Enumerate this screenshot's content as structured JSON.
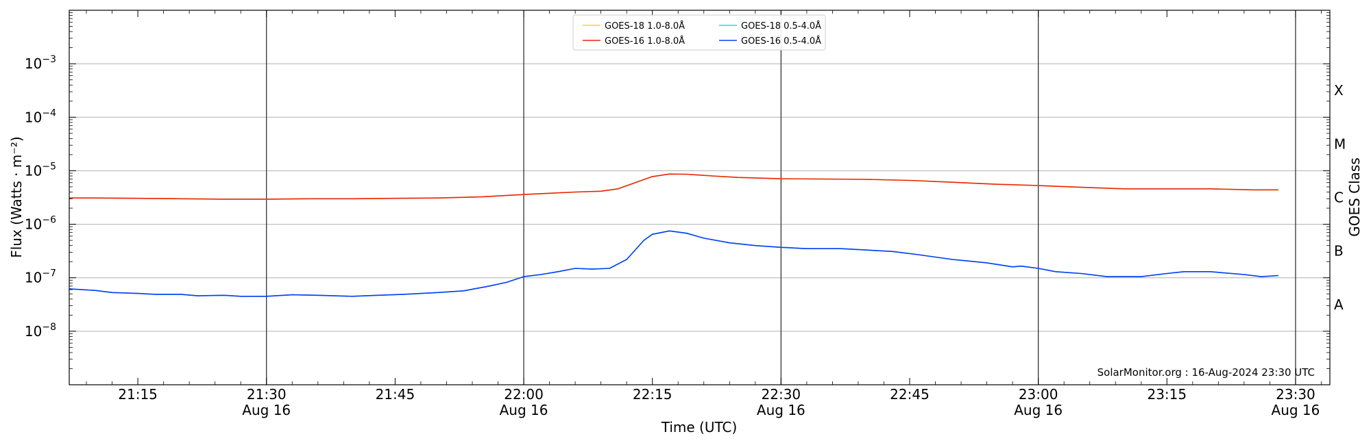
{
  "chart_data": {
    "type": "line",
    "xlabel": "Time (UTC)",
    "ylabel": "Flux (Watts · m⁻²)",
    "ylabel_right": "GOES Class",
    "annotation": "SolarMonitor.org : 16-Aug-2024 23:30 UTC",
    "y_scale": "log",
    "ylim": [
      1e-09,
      0.01
    ],
    "xlim": [
      "21:07",
      "23:34"
    ],
    "grid": "horizontal at decades, vertical at half-hours",
    "legend_placement": "top-center",
    "x_ticks": [
      {
        "t": "21:15",
        "label": "21:15",
        "sub": ""
      },
      {
        "t": "21:30",
        "label": "21:30",
        "sub": "Aug 16"
      },
      {
        "t": "21:45",
        "label": "21:45",
        "sub": ""
      },
      {
        "t": "22:00",
        "label": "22:00",
        "sub": "Aug 16"
      },
      {
        "t": "22:15",
        "label": "22:15",
        "sub": ""
      },
      {
        "t": "22:30",
        "label": "22:30",
        "sub": "Aug 16"
      },
      {
        "t": "22:45",
        "label": "22:45",
        "sub": ""
      },
      {
        "t": "23:00",
        "label": "23:00",
        "sub": "Aug 16"
      },
      {
        "t": "23:15",
        "label": "23:15",
        "sub": ""
      },
      {
        "t": "23:30",
        "label": "23:30",
        "sub": "Aug 16"
      }
    ],
    "y_ticks": [
      {
        "exp": -8,
        "label": "10",
        "sup": "−8"
      },
      {
        "exp": -7,
        "label": "10",
        "sup": "−7"
      },
      {
        "exp": -6,
        "label": "10",
        "sup": "−6"
      },
      {
        "exp": -5,
        "label": "10",
        "sup": "−5"
      },
      {
        "exp": -4,
        "label": "10",
        "sup": "−4"
      },
      {
        "exp": -3,
        "label": "10",
        "sup": "−3"
      }
    ],
    "goes_classes": [
      {
        "label": "A",
        "exp": -7.5
      },
      {
        "label": "B",
        "exp": -6.5
      },
      {
        "label": "C",
        "exp": -5.5
      },
      {
        "label": "M",
        "exp": -4.5
      },
      {
        "label": "X",
        "exp": -3.5
      }
    ],
    "series": [
      {
        "name": "GOES-18 1.0-8.0Å",
        "color": "#ffd700",
        "points": [
          [
            "21:07",
            3.1e-06
          ],
          [
            "21:10",
            3.1e-06
          ],
          [
            "21:15",
            3.05e-06
          ],
          [
            "21:20",
            3e-06
          ],
          [
            "21:25",
            2.95e-06
          ],
          [
            "21:30",
            2.95e-06
          ],
          [
            "21:35",
            3e-06
          ],
          [
            "21:40",
            3e-06
          ],
          [
            "21:45",
            3.05e-06
          ],
          [
            "21:50",
            3.1e-06
          ],
          [
            "21:55",
            3.25e-06
          ],
          [
            "22:00",
            3.6e-06
          ],
          [
            "22:03",
            3.8e-06
          ],
          [
            "22:06",
            4e-06
          ],
          [
            "22:09",
            4.15e-06
          ],
          [
            "22:11",
            4.6e-06
          ],
          [
            "22:13",
            6e-06
          ],
          [
            "22:15",
            7.8e-06
          ],
          [
            "22:17",
            8.7e-06
          ],
          [
            "22:19",
            8.6e-06
          ],
          [
            "22:22",
            8e-06
          ],
          [
            "22:25",
            7.5e-06
          ],
          [
            "22:30",
            7.1e-06
          ],
          [
            "22:35",
            7e-06
          ],
          [
            "22:40",
            6.9e-06
          ],
          [
            "22:45",
            6.6e-06
          ],
          [
            "22:50",
            6.1e-06
          ],
          [
            "22:55",
            5.6e-06
          ],
          [
            "23:00",
            5.3e-06
          ],
          [
            "23:05",
            4.9e-06
          ],
          [
            "23:10",
            4.6e-06
          ],
          [
            "23:15",
            4.6e-06
          ],
          [
            "23:20",
            4.6e-06
          ],
          [
            "23:25",
            4.4e-06
          ],
          [
            "23:28",
            4.4e-06
          ]
        ]
      },
      {
        "name": "GOES-16 1.0-8.0Å",
        "color": "#e8250f",
        "points": [
          [
            "21:07",
            3.1e-06
          ],
          [
            "21:10",
            3.1e-06
          ],
          [
            "21:15",
            3.05e-06
          ],
          [
            "21:20",
            3e-06
          ],
          [
            "21:25",
            2.95e-06
          ],
          [
            "21:30",
            2.95e-06
          ],
          [
            "21:35",
            3e-06
          ],
          [
            "21:40",
            3e-06
          ],
          [
            "21:45",
            3.05e-06
          ],
          [
            "21:50",
            3.1e-06
          ],
          [
            "21:55",
            3.25e-06
          ],
          [
            "22:00",
            3.6e-06
          ],
          [
            "22:03",
            3.8e-06
          ],
          [
            "22:06",
            4e-06
          ],
          [
            "22:09",
            4.15e-06
          ],
          [
            "22:11",
            4.6e-06
          ],
          [
            "22:13",
            6e-06
          ],
          [
            "22:15",
            7.8e-06
          ],
          [
            "22:17",
            8.7e-06
          ],
          [
            "22:19",
            8.6e-06
          ],
          [
            "22:22",
            8e-06
          ],
          [
            "22:25",
            7.5e-06
          ],
          [
            "22:30",
            7.1e-06
          ],
          [
            "22:35",
            7e-06
          ],
          [
            "22:40",
            6.9e-06
          ],
          [
            "22:45",
            6.6e-06
          ],
          [
            "22:50",
            6.1e-06
          ],
          [
            "22:55",
            5.6e-06
          ],
          [
            "23:00",
            5.3e-06
          ],
          [
            "23:05",
            4.9e-06
          ],
          [
            "23:10",
            4.6e-06
          ],
          [
            "23:15",
            4.6e-06
          ],
          [
            "23:20",
            4.6e-06
          ],
          [
            "23:25",
            4.4e-06
          ],
          [
            "23:28",
            4.4e-06
          ]
        ]
      },
      {
        "name": "GOES-18 0.5-4.0Å",
        "color": "#22d8f0",
        "points": [
          [
            "21:07",
            6.2e-08
          ],
          [
            "21:10",
            5.8e-08
          ],
          [
            "21:12",
            5.3e-08
          ],
          [
            "21:15",
            5.1e-08
          ],
          [
            "21:17",
            4.9e-08
          ],
          [
            "21:20",
            4.9e-08
          ],
          [
            "21:22",
            4.6e-08
          ],
          [
            "21:25",
            4.7e-08
          ],
          [
            "21:27",
            4.5e-08
          ],
          [
            "21:30",
            4.5e-08
          ],
          [
            "21:33",
            4.8e-08
          ],
          [
            "21:36",
            4.7e-08
          ],
          [
            "21:40",
            4.5e-08
          ],
          [
            "21:43",
            4.7e-08
          ],
          [
            "21:46",
            4.9e-08
          ],
          [
            "21:50",
            5.3e-08
          ],
          [
            "21:53",
            5.7e-08
          ],
          [
            "21:56",
            7e-08
          ],
          [
            "21:58",
            8.2e-08
          ],
          [
            "22:00",
            1.05e-07
          ],
          [
            "22:02",
            1.15e-07
          ],
          [
            "22:04",
            1.3e-07
          ],
          [
            "22:06",
            1.5e-07
          ],
          [
            "22:08",
            1.45e-07
          ],
          [
            "22:10",
            1.5e-07
          ],
          [
            "22:12",
            2.2e-07
          ],
          [
            "22:14",
            5e-07
          ],
          [
            "22:15",
            6.5e-07
          ],
          [
            "22:17",
            7.5e-07
          ],
          [
            "22:19",
            6.8e-07
          ],
          [
            "22:21",
            5.5e-07
          ],
          [
            "22:24",
            4.5e-07
          ],
          [
            "22:27",
            4e-07
          ],
          [
            "22:30",
            3.7e-07
          ],
          [
            "22:33",
            3.5e-07
          ],
          [
            "22:37",
            3.5e-07
          ],
          [
            "22:40",
            3.3e-07
          ],
          [
            "22:43",
            3.1e-07
          ],
          [
            "22:46",
            2.7e-07
          ],
          [
            "22:50",
            2.2e-07
          ],
          [
            "22:54",
            1.9e-07
          ],
          [
            "22:57",
            1.6e-07
          ],
          [
            "22:58",
            1.65e-07
          ],
          [
            "23:00",
            1.5e-07
          ],
          [
            "23:02",
            1.3e-07
          ],
          [
            "23:05",
            1.2e-07
          ],
          [
            "23:08",
            1.05e-07
          ],
          [
            "23:12",
            1.05e-07
          ],
          [
            "23:15",
            1.2e-07
          ],
          [
            "23:17",
            1.3e-07
          ],
          [
            "23:20",
            1.3e-07
          ],
          [
            "23:24",
            1.15e-07
          ],
          [
            "23:26",
            1.05e-07
          ],
          [
            "23:28",
            1.1e-07
          ]
        ]
      },
      {
        "name": "GOES-16 0.5-4.0Å",
        "color": "#0b3ef2",
        "points": [
          [
            "21:07",
            6.2e-08
          ],
          [
            "21:10",
            5.8e-08
          ],
          [
            "21:12",
            5.3e-08
          ],
          [
            "21:15",
            5.1e-08
          ],
          [
            "21:17",
            4.9e-08
          ],
          [
            "21:20",
            4.9e-08
          ],
          [
            "21:22",
            4.6e-08
          ],
          [
            "21:25",
            4.7e-08
          ],
          [
            "21:27",
            4.5e-08
          ],
          [
            "21:30",
            4.5e-08
          ],
          [
            "21:33",
            4.8e-08
          ],
          [
            "21:36",
            4.7e-08
          ],
          [
            "21:40",
            4.5e-08
          ],
          [
            "21:43",
            4.7e-08
          ],
          [
            "21:46",
            4.9e-08
          ],
          [
            "21:50",
            5.3e-08
          ],
          [
            "21:53",
            5.7e-08
          ],
          [
            "21:56",
            7e-08
          ],
          [
            "21:58",
            8.2e-08
          ],
          [
            "22:00",
            1.05e-07
          ],
          [
            "22:02",
            1.15e-07
          ],
          [
            "22:04",
            1.3e-07
          ],
          [
            "22:06",
            1.5e-07
          ],
          [
            "22:08",
            1.45e-07
          ],
          [
            "22:10",
            1.5e-07
          ],
          [
            "22:12",
            2.2e-07
          ],
          [
            "22:14",
            5e-07
          ],
          [
            "22:15",
            6.5e-07
          ],
          [
            "22:17",
            7.5e-07
          ],
          [
            "22:19",
            6.8e-07
          ],
          [
            "22:21",
            5.5e-07
          ],
          [
            "22:24",
            4.5e-07
          ],
          [
            "22:27",
            4e-07
          ],
          [
            "22:30",
            3.7e-07
          ],
          [
            "22:33",
            3.5e-07
          ],
          [
            "22:37",
            3.5e-07
          ],
          [
            "22:40",
            3.3e-07
          ],
          [
            "22:43",
            3.1e-07
          ],
          [
            "22:46",
            2.7e-07
          ],
          [
            "22:50",
            2.2e-07
          ],
          [
            "22:54",
            1.9e-07
          ],
          [
            "22:57",
            1.6e-07
          ],
          [
            "22:58",
            1.65e-07
          ],
          [
            "23:00",
            1.5e-07
          ],
          [
            "23:02",
            1.3e-07
          ],
          [
            "23:05",
            1.2e-07
          ],
          [
            "23:08",
            1.05e-07
          ],
          [
            "23:12",
            1.05e-07
          ],
          [
            "23:15",
            1.2e-07
          ],
          [
            "23:17",
            1.3e-07
          ],
          [
            "23:20",
            1.3e-07
          ],
          [
            "23:24",
            1.15e-07
          ],
          [
            "23:26",
            1.05e-07
          ],
          [
            "23:28",
            1.1e-07
          ]
        ]
      }
    ]
  }
}
